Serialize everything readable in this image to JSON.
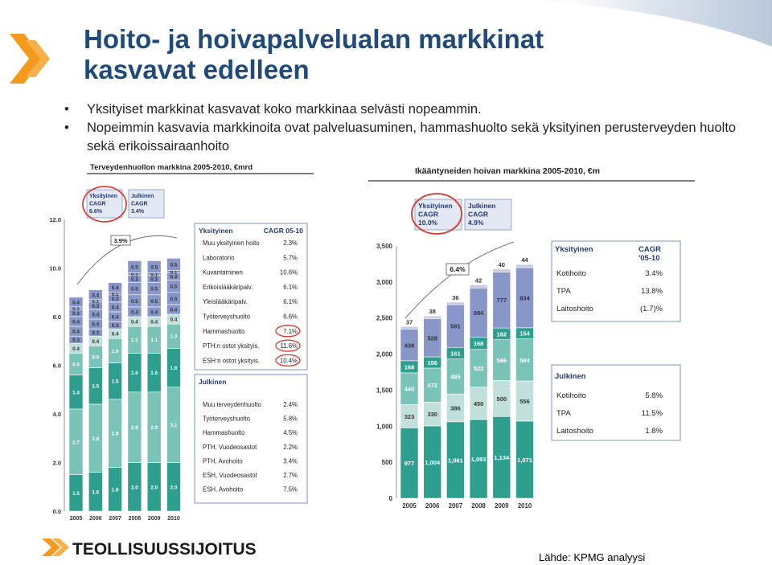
{
  "slide": {
    "title_line1": "Hoito- ja hoivapalvelualan markkinat",
    "title_line2": "kasvavat edelleen",
    "bullets": [
      "Yksityiset markkinat kasvavat koko markkinaa selvästi nopeammin.",
      "Nopeimmin kasvavia markkinoita ovat palveluasuminen, hammashuolto sekä yksityinen perusterveyden huolto sekä erikoissairaanhoito"
    ],
    "bullet_symbol": "•",
    "logo_text": "TEOLLISUUSSIJOITUS",
    "source": "Lähde: KPMG analyysi",
    "colors": {
      "title": "#1f4a7a",
      "logo_orange": "#f39a1e",
      "dark_bar": "#2e9e8f",
      "mid_bar": "#79c3b7",
      "light_bar": "#c2e0db",
      "blue_bar": "#8896c8",
      "red_circle": "#e0312b",
      "panel_border": "#7a96c4"
    }
  },
  "chart_data": [
    {
      "type": "bar",
      "title": "Terveydenhuollon markkina 2005-2010, €mrd",
      "categories": [
        "2005",
        "2006",
        "2007",
        "2008",
        "2009",
        "2010"
      ],
      "ylim": [
        0,
        12
      ],
      "yticks": [
        "0.0",
        "2.0",
        "4.0",
        "6.0",
        "8.0",
        "10.0",
        "12.0"
      ],
      "series": [
        {
          "values": [
            1.5,
            1.6,
            1.8,
            2.0,
            2.0,
            2.0
          ],
          "labels": [
            "1.5",
            "1.6",
            "1.8",
            "2.0",
            "2.0",
            "2.0"
          ]
        },
        {
          "values": [
            2.7,
            2.8,
            2.8,
            2.9,
            2.9,
            3.1
          ],
          "labels": [
            "2.7",
            "2.8",
            "2.8",
            "2.9",
            "2.9",
            "3.1"
          ]
        },
        {
          "values": [
            1.4,
            1.5,
            1.5,
            1.6,
            1.6,
            1.6
          ],
          "labels": [
            "1.4",
            "1.5",
            "1.5",
            "1.6",
            "1.6",
            "1.6"
          ]
        },
        {
          "values": [
            0.9,
            0.9,
            1.0,
            1.1,
            1.1,
            1.0
          ],
          "labels": [
            "0.9",
            "0.9",
            "1.0",
            "1.1",
            "1.1",
            "1.0"
          ]
        },
        {
          "values": [
            0.4,
            0.4,
            0.4,
            0.4,
            0.4,
            0.4
          ],
          "labels": [
            "0.4",
            "0.4",
            "0.4",
            "0.4",
            "0.4",
            "0.4"
          ]
        },
        {
          "values": [
            0.3,
            0.3,
            0.3,
            0.4,
            0.4,
            0.4
          ],
          "labels": [
            "0.3",
            "0.3",
            "0.3",
            "0.4",
            "0.4",
            "0.4"
          ]
        },
        {
          "values": [
            0.4,
            0.4,
            0.4,
            0.5,
            0.5,
            0.5
          ],
          "labels": [
            "0.4",
            "0.4",
            "0.4",
            "0.5",
            "0.5",
            "0.5"
          ]
        },
        {
          "values": [
            0.4,
            0.4,
            0.4,
            0.5,
            0.5,
            0.5
          ],
          "labels": [
            "0.4",
            "0.4",
            "0.4",
            "0.5",
            "0.5",
            "0.5"
          ]
        },
        {
          "values": [
            0.3,
            0.3,
            0.3,
            0.3,
            0.3,
            0.3
          ],
          "labels": [
            "0.3",
            "0.3",
            "0.3",
            "0.3",
            "0.3",
            "0.3"
          ]
        },
        {
          "values": [
            0.1,
            0.1,
            0.1,
            0.1,
            0.1,
            0.1
          ],
          "labels": [
            "0.1",
            "0.1",
            "0.1",
            "0.1",
            "0.1",
            "0.1"
          ]
        },
        {
          "values": [
            0.4,
            0.4,
            0.4,
            0.5,
            0.5,
            0.5
          ],
          "labels": [
            "0.4",
            "0.4",
            "0.4",
            "0.5",
            "0.5",
            "0.5"
          ]
        }
      ],
      "annotations": {
        "cagr_3_9": "3.9%",
        "badge_private": [
          "Yksityinen",
          "CAGR",
          "6.6%"
        ],
        "badge_public": [
          "Julkinen",
          "CAGR",
          "3.4%"
        ]
      },
      "legend_private": {
        "header": [
          "Yksityinen",
          "CAGR 05-10"
        ],
        "rows": [
          [
            "Muu yksityinen hoito",
            "2.3%"
          ],
          [
            "Laboratorio",
            "5.7%"
          ],
          [
            "Kuvantaminen",
            "10.6%"
          ],
          [
            "Erikoislääkäripalv.",
            "6.1%"
          ],
          [
            "Yleislääkäripalv.",
            "6.1%"
          ],
          [
            "Työterveyshuolto",
            "6.6%"
          ],
          [
            "Hammashuolto",
            "7.1%"
          ],
          [
            "PTH:n ostot yksityis.",
            "11.6%"
          ],
          [
            "ESH:n ostot yksityis.",
            "10.4%"
          ]
        ],
        "circled": [
          6,
          7,
          8
        ]
      },
      "legend_public": {
        "header": [
          "Julkinen"
        ],
        "rows": [
          [
            "Muu terveydenhuolto",
            "2.4%"
          ],
          [
            "Työterveyshuolto",
            "5.8%"
          ],
          [
            "Hammashuolto",
            "4.5%"
          ],
          [
            "PTH, Vuodeosastot",
            "2.2%"
          ],
          [
            "PTH, Avohoito",
            "3.4%"
          ],
          [
            "ESH, Vuodeosastot",
            "2.7%"
          ],
          [
            "ESH, Avohoito",
            "7.5%"
          ]
        ]
      }
    },
    {
      "type": "bar",
      "title": "Ikääntyneiden hoivan markkina 2005-2010, €m",
      "categories": [
        "2005",
        "2006",
        "2007",
        "2008",
        "2009",
        "2010"
      ],
      "ylim": [
        0,
        3500
      ],
      "yticks": [
        "0",
        "500",
        "1,000",
        "1,500",
        "2,000",
        "2,500",
        "3,000",
        "3,500"
      ],
      "series": [
        {
          "values": [
            977,
            1004,
            1061,
            1093,
            1134,
            1071
          ],
          "labels": [
            "977",
            "1,004",
            "1,061",
            "1,093",
            "1,134",
            "1,071"
          ]
        },
        {
          "values": [
            323,
            330,
            386,
            450,
            500,
            556
          ],
          "labels": [
            "323",
            "330",
            "386",
            "450",
            "500",
            "556"
          ]
        },
        {
          "values": [
            440,
            472,
            485,
            522,
            566,
            584
          ],
          "labels": [
            "440",
            "472",
            "485",
            "522",
            "566",
            "584"
          ]
        },
        {
          "values": [
            168,
            156,
            161,
            168,
            162,
            154
          ],
          "labels": [
            "168",
            "156",
            "161",
            "168",
            "162",
            "154"
          ]
        },
        {
          "values": [
            436,
            528,
            591,
            684,
            777,
            834
          ],
          "labels": [
            "436",
            "528",
            "591",
            "684",
            "777",
            "834"
          ]
        },
        {
          "values": [
            37,
            38,
            36,
            42,
            40,
            44
          ],
          "labels": [
            "37",
            "38",
            "36",
            "42",
            "40",
            "44"
          ]
        }
      ],
      "annotations": {
        "cagr_6_4": "6.4%",
        "badge_private": [
          "Yksityinen",
          "CAGR",
          "10.0%"
        ],
        "badge_public": [
          "Julkinen",
          "CAGR",
          "4.9%"
        ]
      },
      "legend_private": {
        "header": [
          "Yksityinen",
          "CAGR",
          "'05-10"
        ],
        "rows": [
          [
            "Kotihoito",
            "3.4%"
          ],
          [
            "TPA",
            "13.8%"
          ],
          [
            "Laitoshoito",
            "(1.7)%"
          ]
        ]
      },
      "legend_public": {
        "header": [
          "Julkinen"
        ],
        "rows": [
          [
            "Kotihoito",
            "5.8%"
          ],
          [
            "TPA",
            "11.5%"
          ],
          [
            "Laitoshoito",
            "1.8%"
          ]
        ]
      }
    }
  ]
}
